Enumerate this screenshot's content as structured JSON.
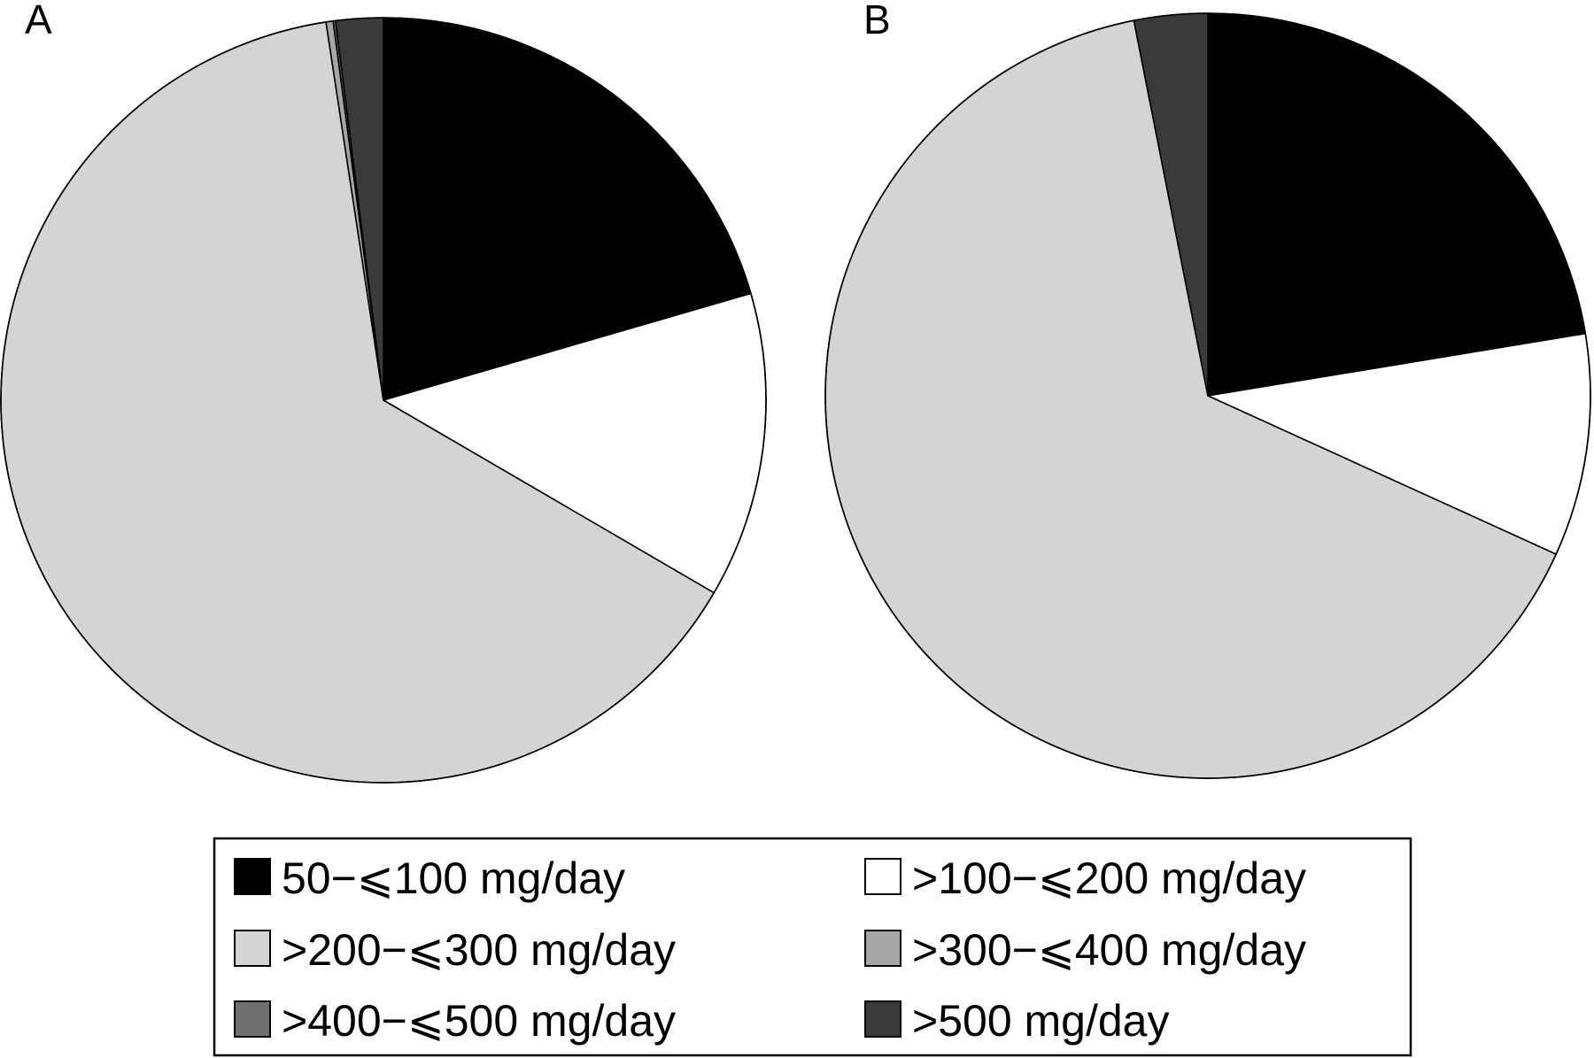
{
  "colors": {
    "50-100": "#000000",
    "100-200": "#ffffff",
    "200-300": "#d4d4d4",
    "300-400": "#a6a6a6",
    "400-500": "#707070",
    "500plus": "#3a3a3a",
    "outline": "#000000"
  },
  "chart_data": [
    {
      "type": "pie",
      "panel": "A",
      "categories": [
        "50–≤100 mg/day",
        ">100–≤200 mg/day",
        ">200–≤300 mg/day",
        ">300–≤400 mg/day",
        ">400–≤500 mg/day",
        ">500 mg/day"
      ],
      "values": [
        20.5,
        12.9,
        64.2,
        0.3,
        0.1,
        2.0
      ],
      "start": "12 o'clock",
      "direction": "clockwise"
    },
    {
      "type": "pie",
      "panel": "B",
      "categories": [
        "50–≤100 mg/day",
        ">100–≤200 mg/day",
        ">200–≤300 mg/day",
        ">300–≤400 mg/day",
        ">400–≤500 mg/day",
        ">500 mg/day"
      ],
      "values": [
        22.4,
        9.4,
        65.1,
        0.0,
        0.0,
        3.1
      ],
      "start": "12 o'clock",
      "direction": "clockwise"
    }
  ],
  "legend": {
    "placement": "bottom",
    "items": [
      {
        "label": "50−⩽100 mg/day",
        "color_key": "50-100"
      },
      {
        "label": ">100−⩽200 mg/day",
        "color_key": "100-200"
      },
      {
        "label": ">200−⩽300 mg/day",
        "color_key": "200-300"
      },
      {
        "label": ">300−⩽400 mg/day",
        "color_key": "300-400"
      },
      {
        "label": ">400−⩽500 mg/day",
        "color_key": "400-500"
      },
      {
        "label": ">500 mg/day",
        "color_key": "500plus"
      }
    ]
  }
}
